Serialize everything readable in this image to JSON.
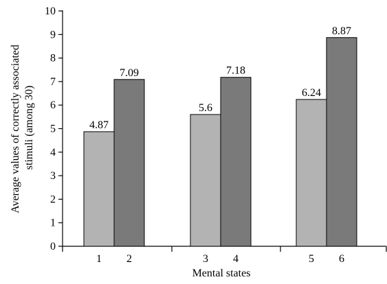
{
  "chart_data": {
    "type": "bar",
    "xlabel": "Mental states",
    "ylabel_lines": [
      "Average values of correctly associated",
      "stimuli (among 30)"
    ],
    "ylim": [
      0,
      10
    ],
    "yticks": [
      "0",
      "1",
      "2",
      "3",
      "4",
      "5",
      "6",
      "7",
      "8",
      "9",
      "10"
    ],
    "groups": [
      {
        "bars": [
          {
            "category": "1",
            "value": 4.87,
            "label": "4.87"
          },
          {
            "category": "2",
            "value": 7.09,
            "label": "7.09"
          }
        ]
      },
      {
        "bars": [
          {
            "category": "3",
            "value": 5.6,
            "label": "5.6"
          },
          {
            "category": "4",
            "value": 7.18,
            "label": "7.18"
          }
        ]
      },
      {
        "bars": [
          {
            "category": "5",
            "value": 6.24,
            "label": "6.24"
          },
          {
            "category": "6",
            "value": 8.87,
            "label": "8.87"
          }
        ]
      }
    ],
    "colors": {
      "light_bar": "#b3b3b3",
      "dark_bar": "#7a7a7a",
      "stroke": "#000000"
    },
    "grid": false,
    "legend": "none"
  }
}
